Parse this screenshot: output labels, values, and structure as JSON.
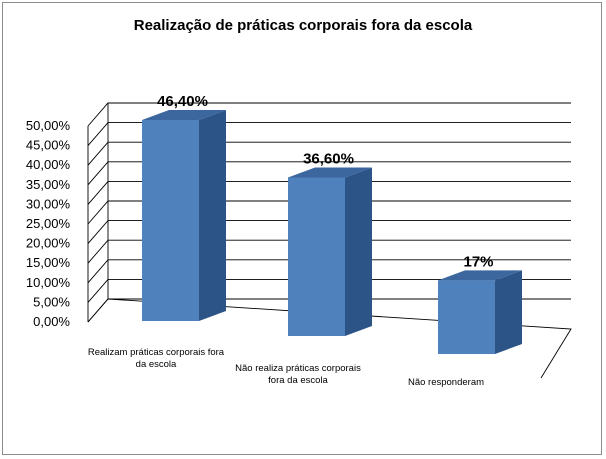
{
  "chart_data": {
    "type": "bar",
    "title": "Realização de práticas corporais fora da escola",
    "categories": [
      [
        "Realizam práticas corporais fora",
        "da escola"
      ],
      [
        "Não realiza práticas corporais",
        "fora da escola"
      ],
      [
        "Não responderam"
      ]
    ],
    "values": [
      46.4,
      36.6,
      17
    ],
    "data_labels": [
      "46,40%",
      "36,60%",
      "17%"
    ],
    "ylim": [
      0,
      50
    ],
    "yticks": [
      "0,00%",
      "5,00%",
      "10,00%",
      "15,00%",
      "20,00%",
      "25,00%",
      "30,00%",
      "35,00%",
      "40,00%",
      "45,00%",
      "50,00%"
    ],
    "grid": true,
    "legend": "none",
    "style": "3d-column",
    "colors": {
      "front": "#4f81bd",
      "top": "#3b679e",
      "side": "#2d5487"
    }
  }
}
